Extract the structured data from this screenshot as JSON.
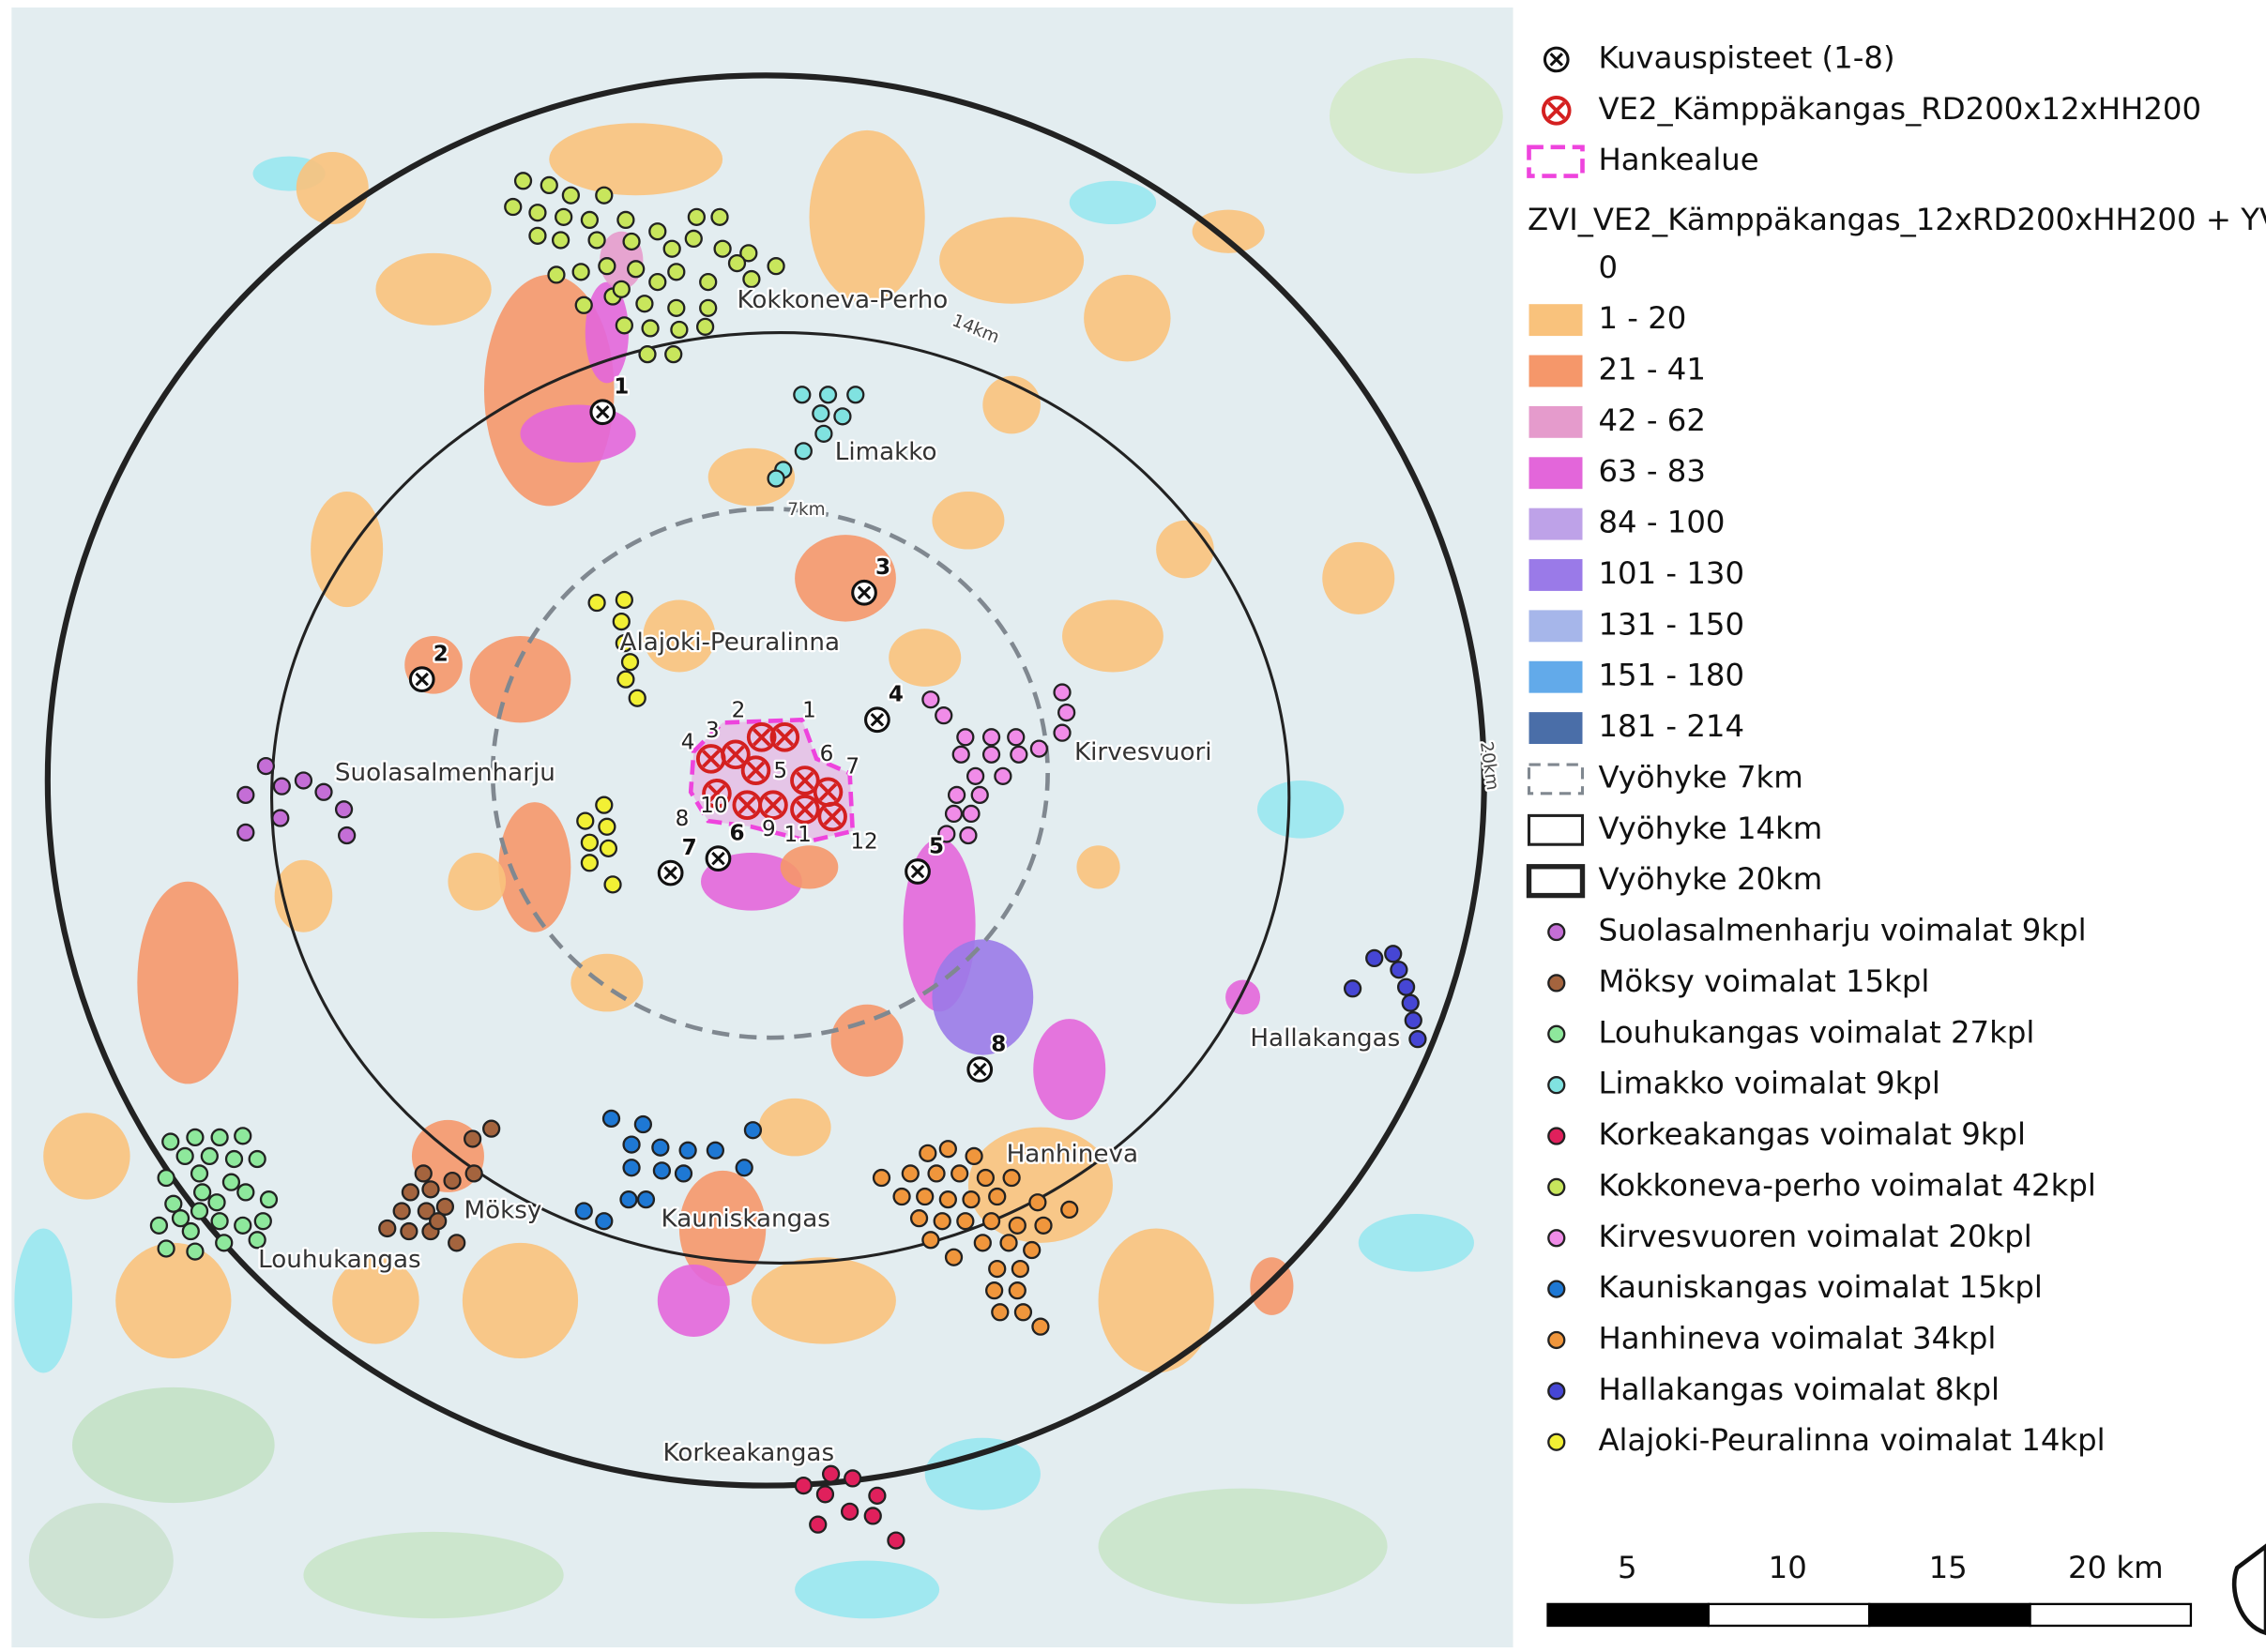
{
  "map": {
    "places": [
      "Kokkoneva-Perho",
      "Limakko",
      "Alajoki-Peuralinna",
      "Suolasalmenharju",
      "Kirvesvuori",
      "Hallakangas",
      "Hanhineva",
      "Kauniskangas",
      "Möksy",
      "Louhukangas",
      "Korkeakangas"
    ],
    "zone_labels": [
      "7km",
      "14km",
      "20km"
    ],
    "viewpoints": [
      "1",
      "2",
      "3",
      "4",
      "5",
      "6",
      "7",
      "8"
    ],
    "turbines": [
      "1",
      "2",
      "3",
      "4",
      "5",
      "6",
      "7",
      "8",
      "9",
      "10",
      "11",
      "12"
    ]
  },
  "legend": {
    "point_layers": [
      {
        "label": "Kuvauspisteet (1-8)",
        "symbol": "viewpoint"
      },
      {
        "label": "VE2_Kämppäkangas_RD200x12xHH200",
        "symbol": "turbine"
      },
      {
        "label": "Hankealue",
        "symbol": "area"
      }
    ],
    "zvi_title": "ZVI_VE2_Kämppäkangas_12xRD200xHH200 + YV",
    "zvi_classes": [
      {
        "label": "0",
        "color": "none"
      },
      {
        "label": "1 - 20",
        "color": "#f9c27c"
      },
      {
        "label": "21 - 41",
        "color": "#f5976a"
      },
      {
        "label": "42 - 62",
        "color": "#e59bcc"
      },
      {
        "label": "63 - 83",
        "color": "#e366da"
      },
      {
        "label": "84 - 100",
        "color": "#bea2e8"
      },
      {
        "label": "101 - 130",
        "color": "#9a7ae8"
      },
      {
        "label": "131 - 150",
        "color": "#a6b6ea"
      },
      {
        "label": "151 - 180",
        "color": "#62aaea"
      },
      {
        "label": "181 - 214",
        "color": "#4a6ea8"
      }
    ],
    "zones": [
      {
        "label": "Vyöhyke 7km",
        "style": "dashed"
      },
      {
        "label": "Vyöhyke 14km",
        "style": "thin"
      },
      {
        "label": "Vyöhyke 20km",
        "style": "thick"
      }
    ],
    "wind_farms": [
      {
        "label": "Suolasalmenharju voimalat 9kpl",
        "color": "#c46ed6"
      },
      {
        "label": "Möksy voimalat 15kpl",
        "color": "#a4643e"
      },
      {
        "label": "Louhukangas voimalat 27kpl",
        "color": "#8ee89c"
      },
      {
        "label": "Limakko voimalat 9kpl",
        "color": "#80e2e0"
      },
      {
        "label": "Korkeakangas voimalat 9kpl",
        "color": "#e0205c"
      },
      {
        "label": "Kokkoneva-perho voimalat 42kpl",
        "color": "#c8e65c"
      },
      {
        "label": "Kirvesvuoren voimalat 20kpl",
        "color": "#f08ce8"
      },
      {
        "label": "Kauniskangas voimalat 15kpl",
        "color": "#1e78d4"
      },
      {
        "label": "Hanhineva voimalat 34kpl",
        "color": "#f0963c"
      },
      {
        "label": "Hallakangas voimalat 8kpl",
        "color": "#4646d4"
      },
      {
        "label": "Alajoki-Peuralinna voimalat 14kpl",
        "color": "#f2f034"
      }
    ]
  },
  "scale_bar": {
    "labels": [
      "5",
      "10",
      "15",
      "20 km"
    ]
  }
}
